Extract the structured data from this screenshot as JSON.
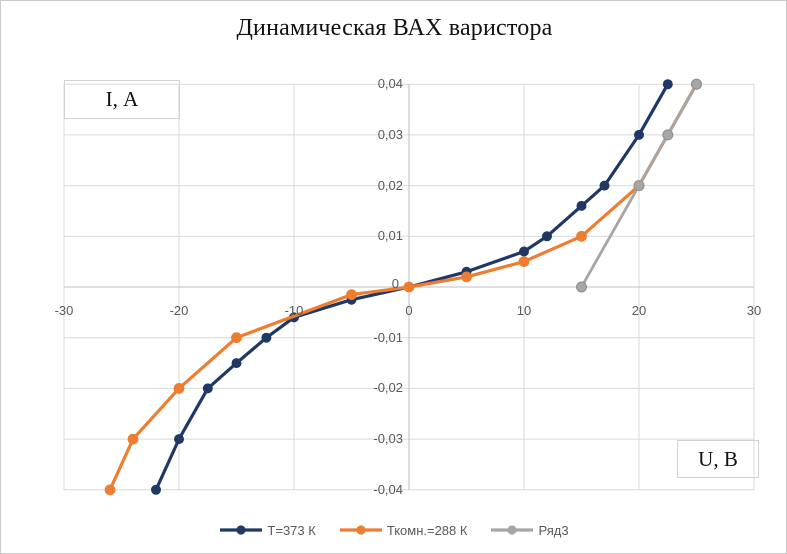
{
  "chart_data": {
    "type": "line",
    "title": "Динамическая ВАХ варистора",
    "y_axis_label": "I, А",
    "x_axis_label": "U, В",
    "xlim": [
      -30,
      30
    ],
    "ylim": [
      -0.04,
      0.04
    ],
    "grid": true,
    "legend_position": "bottom",
    "x_ticks": [
      {
        "value": -30,
        "label": "-30"
      },
      {
        "value": -20,
        "label": "-20"
      },
      {
        "value": -10,
        "label": "-10"
      },
      {
        "value": 0,
        "label": "0"
      },
      {
        "value": 10,
        "label": "10"
      },
      {
        "value": 20,
        "label": "20"
      },
      {
        "value": 30,
        "label": "30"
      }
    ],
    "y_ticks": [
      {
        "value": 0.04,
        "label": "0,04"
      },
      {
        "value": 0.03,
        "label": "0,03"
      },
      {
        "value": 0.02,
        "label": "0,02"
      },
      {
        "value": 0.01,
        "label": "0,01"
      },
      {
        "value": 0,
        "label": "0"
      },
      {
        "value": -0.01,
        "label": "-0,01"
      },
      {
        "value": -0.02,
        "label": "-0,02"
      },
      {
        "value": -0.03,
        "label": "-0,03"
      },
      {
        "value": -0.04,
        "label": "-0,04"
      }
    ],
    "colors": {
      "gridline": "#d9d9d9",
      "axis": "#bfbfbf",
      "tick_text": "#595959"
    },
    "series": [
      {
        "name": "Т=373 К",
        "color": "#203864",
        "marker": "circle",
        "points": [
          [
            -22,
            -0.04
          ],
          [
            -20,
            -0.03
          ],
          [
            -17.5,
            -0.02
          ],
          [
            -15,
            -0.015
          ],
          [
            -12.4,
            -0.01
          ],
          [
            -10,
            -0.006
          ],
          [
            -5,
            -0.0025
          ],
          [
            0,
            0
          ],
          [
            5,
            0.003
          ],
          [
            10,
            0.007
          ],
          [
            12,
            0.01
          ],
          [
            15,
            0.016
          ],
          [
            17,
            0.02
          ],
          [
            20,
            0.03
          ],
          [
            22.5,
            0.04
          ]
        ]
      },
      {
        "name": "Ткомн.=288 К",
        "color": "#ed7d31",
        "marker": "circle",
        "points": [
          [
            -26,
            -0.04
          ],
          [
            -24,
            -0.03
          ],
          [
            -20,
            -0.02
          ],
          [
            -15,
            -0.01
          ],
          [
            -5,
            -0.0015
          ],
          [
            0,
            0
          ],
          [
            5,
            0.002
          ],
          [
            10,
            0.005
          ],
          [
            15,
            0.01
          ],
          [
            20,
            0.02
          ],
          [
            25,
            0.04
          ]
        ]
      },
      {
        "name": "Ряд3",
        "color": "#a6a6a6",
        "marker": "circle",
        "points": [
          [
            15,
            0
          ],
          [
            20,
            0.02
          ],
          [
            22.5,
            0.03
          ],
          [
            25,
            0.04
          ]
        ]
      }
    ]
  }
}
